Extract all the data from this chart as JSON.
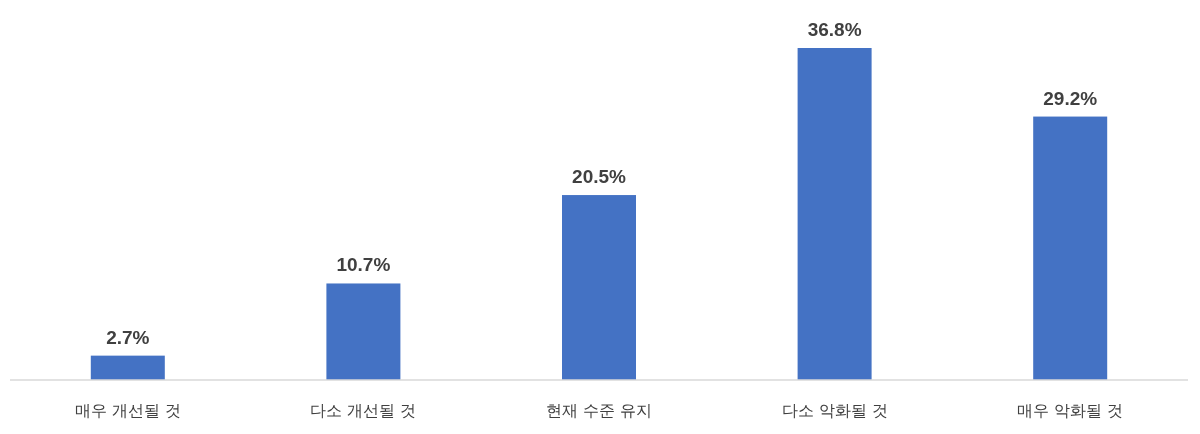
{
  "chart_data": {
    "type": "bar",
    "categories": [
      "매우 개선될 것",
      "다소 개선될 것",
      "현재 수준 유지",
      "다소 악화될 것",
      "매우 악화될 것"
    ],
    "values": [
      2.7,
      10.7,
      20.5,
      36.8,
      29.2
    ],
    "value_labels": [
      "2.7%",
      "10.7%",
      "20.5%",
      "36.8%",
      "29.2%"
    ],
    "color": "#4472c4"
  }
}
